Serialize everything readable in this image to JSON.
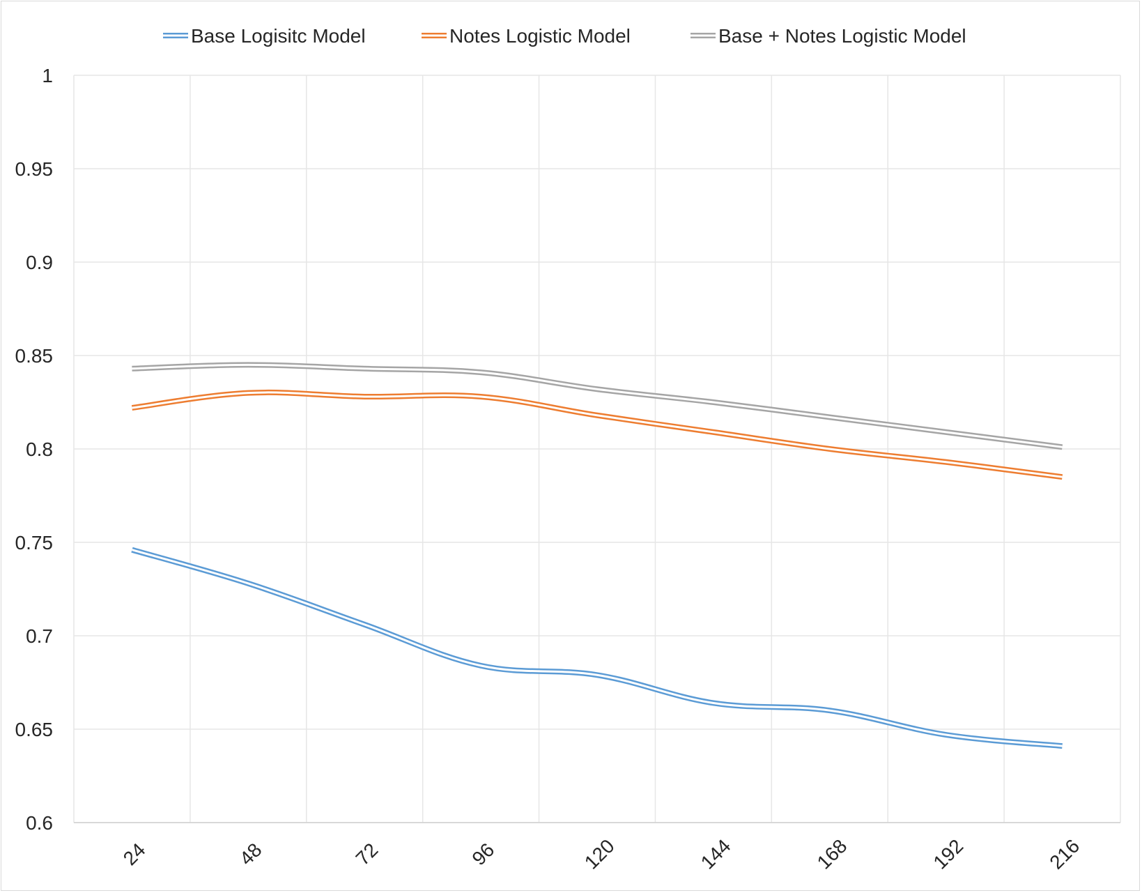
{
  "chart_data": {
    "type": "line",
    "title": "",
    "xlabel": "",
    "ylabel": "",
    "categories": [
      "24",
      "48",
      "72",
      "96",
      "120",
      "144",
      "168",
      "192",
      "216"
    ],
    "ylim": [
      0.6,
      1
    ],
    "yticks": [
      "0.6",
      "0.65",
      "0.7",
      "0.75",
      "0.8",
      "0.85",
      "0.9",
      "0.95",
      "1"
    ],
    "grid": true,
    "legend_position": "top",
    "line_style": "double",
    "series": [
      {
        "name": "Base Logisitc Model",
        "color": "#5b9bd5",
        "values": [
          0.746,
          0.728,
          0.706,
          0.684,
          0.679,
          0.664,
          0.66,
          0.647,
          0.641
        ]
      },
      {
        "name": "Notes Logistic Model",
        "color": "#ed7d31",
        "values": [
          0.822,
          0.83,
          0.828,
          0.828,
          0.818,
          0.809,
          0.8,
          0.793,
          0.785
        ]
      },
      {
        "name": "Base + Notes Logistic Model",
        "color": "#a5a5a5",
        "values": [
          0.843,
          0.845,
          0.843,
          0.841,
          0.832,
          0.825,
          0.817,
          0.809,
          0.801
        ]
      }
    ]
  }
}
